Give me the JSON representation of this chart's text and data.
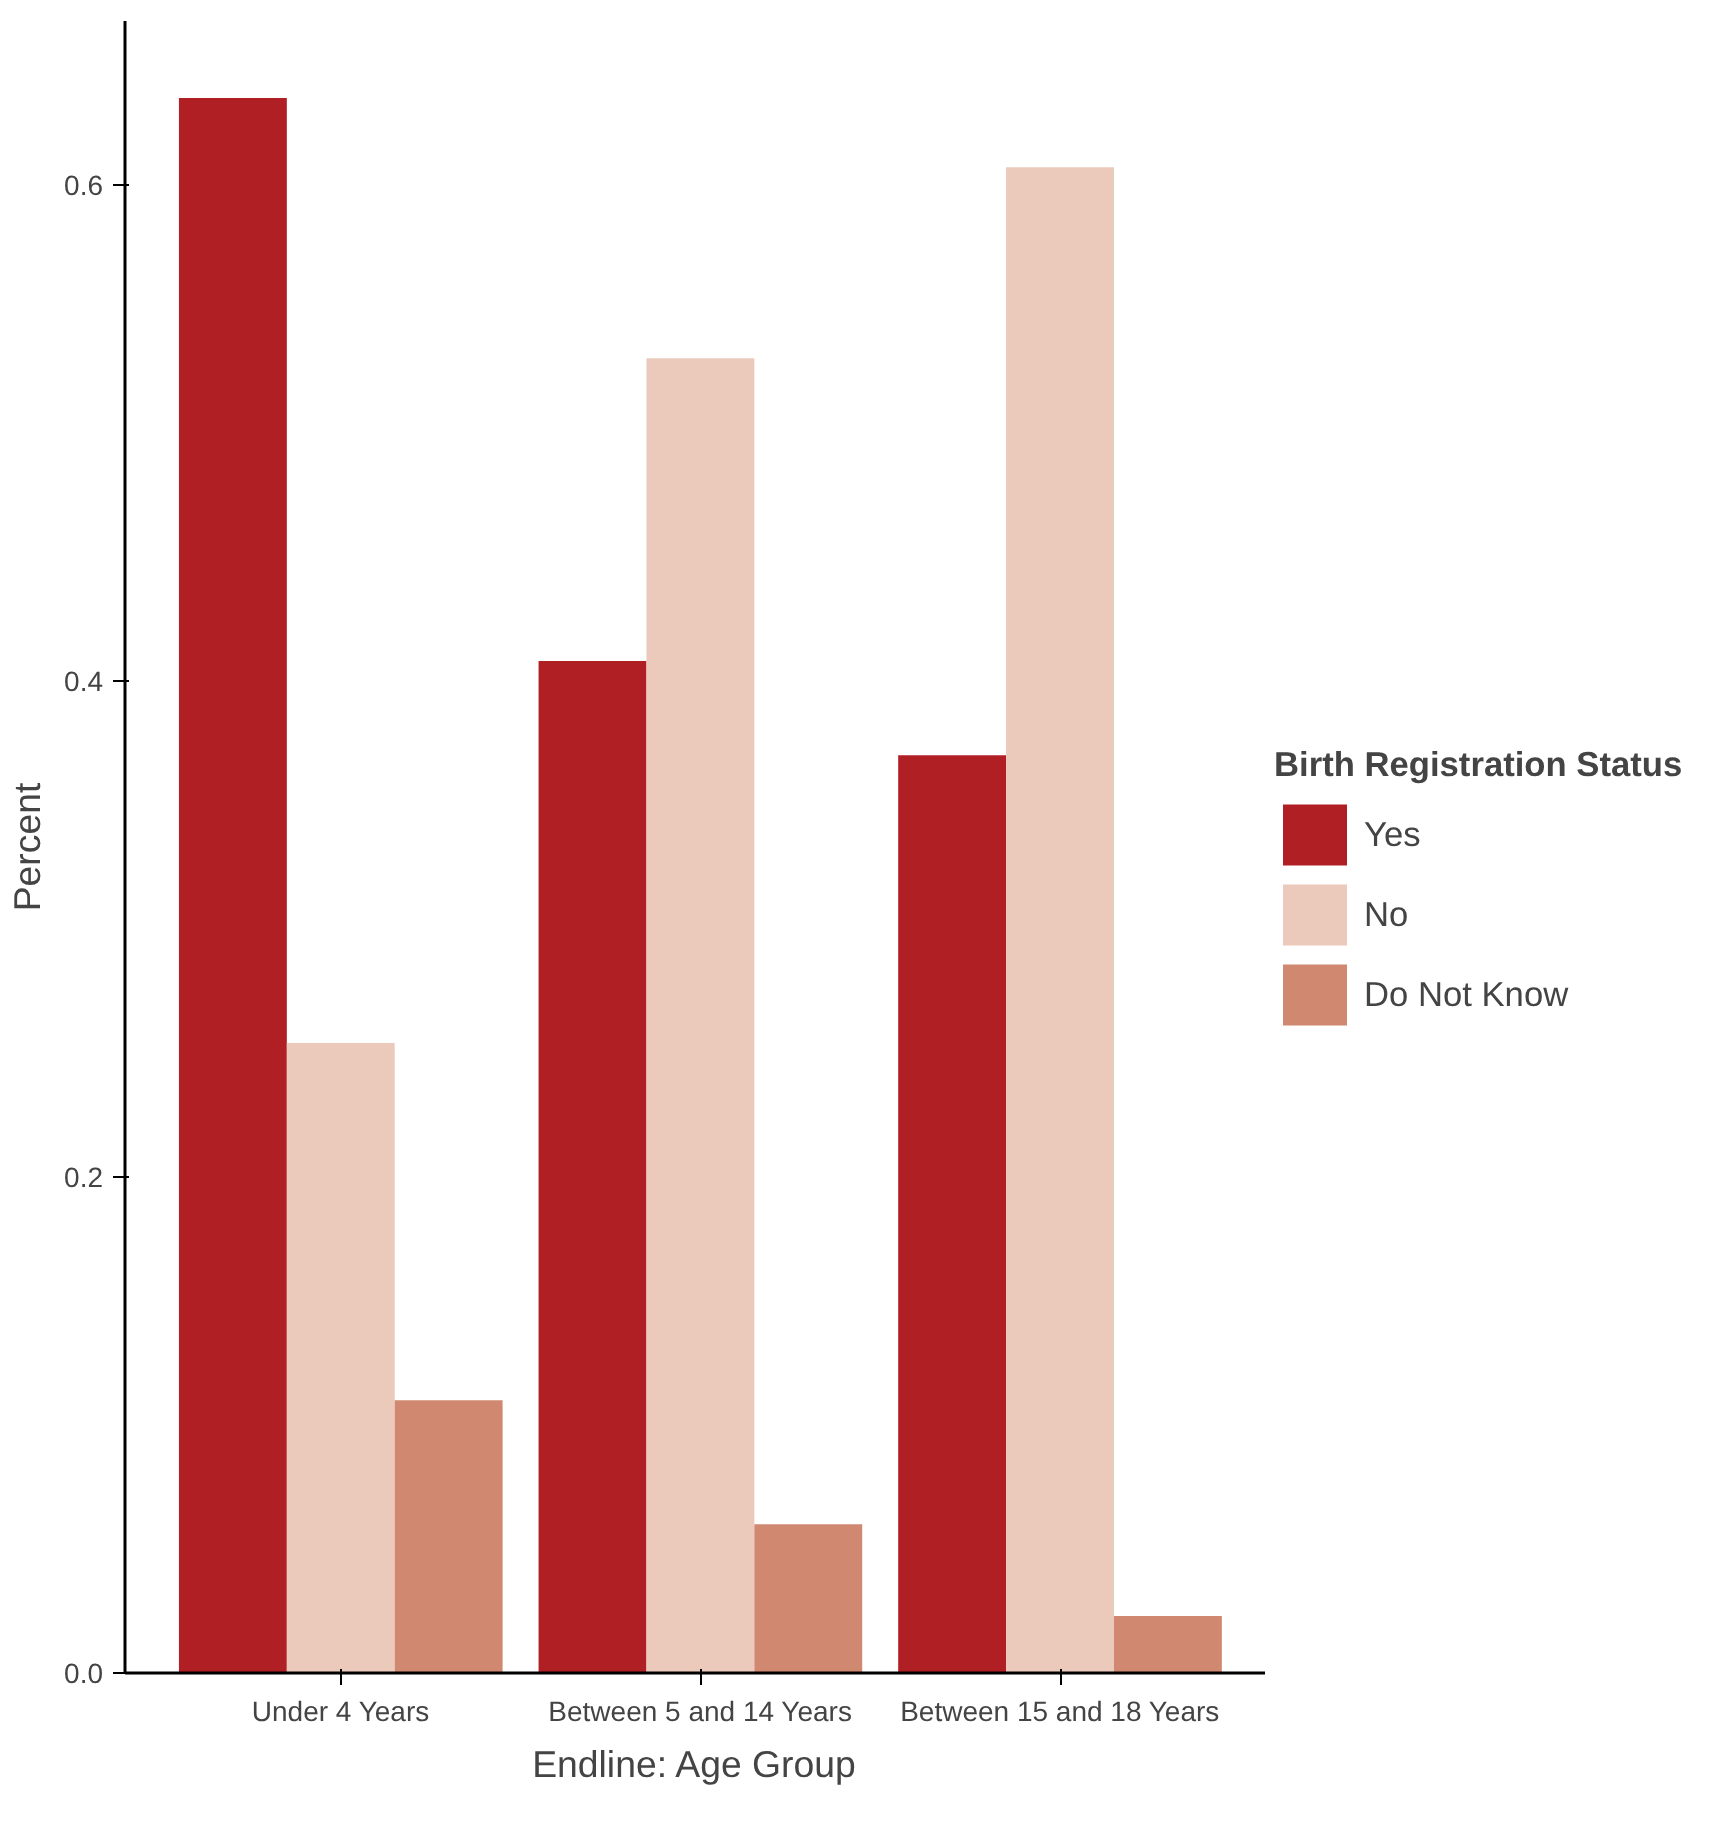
{
  "chart_data": {
    "type": "bar",
    "xlabel": "Endline: Age Group",
    "ylabel": "Percent",
    "legend_title": "Birth Registration Status",
    "categories": [
      "Under 4 Years",
      "Between 5 and 14 Years",
      "Between 15 and 18 Years"
    ],
    "series": [
      {
        "name": "Yes",
        "color": "#b01f24",
        "values": [
          0.635,
          0.408,
          0.37
        ]
      },
      {
        "name": "No",
        "color": "#ebcabb",
        "values": [
          0.254,
          0.53,
          0.607
        ]
      },
      {
        "name": "Do Not Know",
        "color": "#d08871",
        "values": [
          0.11,
          0.06,
          0.023
        ]
      }
    ],
    "ylim": [
      0,
      0.666
    ],
    "yticks": [
      {
        "value": 0,
        "label": "0.0"
      },
      0.2,
      0.4,
      0.6
    ],
    "grid": false,
    "legend": "right"
  }
}
